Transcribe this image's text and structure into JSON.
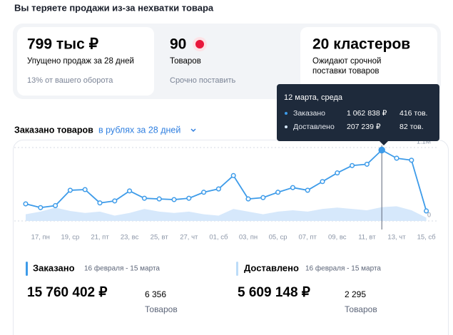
{
  "header": {
    "title": "Вы теряете продажи из-за нехватки товара"
  },
  "cards": [
    {
      "value": "799 тыс ₽",
      "label": "Упущено продаж за 28 дней",
      "note": "13% от вашего оборота"
    },
    {
      "value": "90",
      "label": "Товаров",
      "note": "Срочно поставить"
    },
    {
      "value": "20 кластеров",
      "label": "Ожидают срочной поставки товаров"
    }
  ],
  "chart_header": {
    "title": "Заказано товаров",
    "link": "в рублях за 28 дней"
  },
  "tooltip": {
    "date": "12 марта, среда",
    "rows": [
      {
        "name": "Заказано",
        "amount": "1 062 838 ₽",
        "count": "416 тов."
      },
      {
        "name": "Доставлено",
        "amount": "207 239 ₽",
        "count": "82 тов."
      }
    ]
  },
  "chart_data": {
    "type": "line",
    "categories": [
      null,
      "17, пн",
      null,
      "19, ср",
      null,
      "21, пт",
      null,
      "23, вс",
      null,
      "25, вт",
      null,
      "27, чт",
      null,
      "01, сб",
      null,
      "03, пн",
      null,
      "05, ср",
      null,
      "07, пт",
      null,
      "09, вс",
      null,
      "11, вт",
      null,
      "13, чт",
      null,
      "15, сб"
    ],
    "series": [
      {
        "name": "Заказано",
        "color": "#3d9be9",
        "values": [
          256000,
          200000,
          230000,
          460000,
          470000,
          270000,
          300000,
          450000,
          340000,
          330000,
          320000,
          340000,
          430000,
          480000,
          680000,
          330000,
          350000,
          430000,
          500000,
          460000,
          590000,
          720000,
          830000,
          850000,
          1062838,
          940000,
          910000,
          150000
        ]
      },
      {
        "name": "Доставлено",
        "color": "#d6e8fb",
        "values": [
          100000,
          140000,
          200000,
          150000,
          120000,
          140000,
          80000,
          120000,
          180000,
          140000,
          120000,
          140000,
          100000,
          80000,
          180000,
          140000,
          100000,
          140000,
          160000,
          140000,
          180000,
          200000,
          180000,
          160000,
          207239,
          220000,
          160000,
          50000
        ]
      }
    ],
    "ylim": [
      0,
      1100000
    ],
    "yticks": [
      0,
      {
        "value": 1100000,
        "label": "1.1M"
      }
    ]
  },
  "summary": [
    {
      "name": "Заказано",
      "period": "16 февраля - 15 марта",
      "amount": "15 760 402 ₽",
      "count": "6 356",
      "count_label": "Товаров"
    },
    {
      "name": "Доставлено",
      "period": "16 февраля - 15 марта",
      "amount": "5 609 148 ₽",
      "count": "2 295",
      "count_label": "Товаров"
    }
  ]
}
